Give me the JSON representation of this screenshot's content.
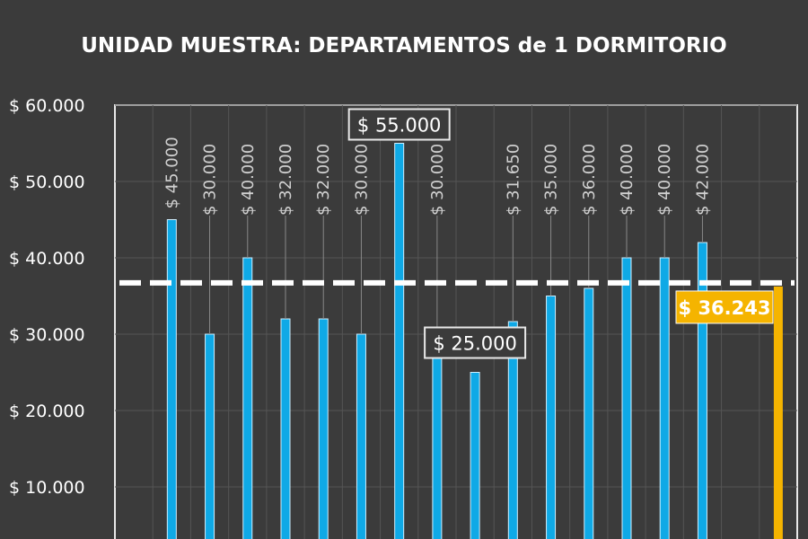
{
  "chart_data": {
    "type": "bar",
    "title": "UNIDAD MUESTRA: DEPARTAMENTOS  de 1 DORMITORIO",
    "xlabel": "",
    "ylabel": "",
    "ylim": [
      0,
      60000
    ],
    "yticks": [
      "$ 10.000",
      "$ 20.000",
      "$ 30.000",
      "$ 40.000",
      "$ 50.000",
      "$ 60.000"
    ],
    "ytick_values": [
      10000,
      20000,
      30000,
      40000,
      50000,
      60000
    ],
    "grid": true,
    "values": [
      45000,
      30000,
      40000,
      32000,
      32000,
      30000,
      55000,
      30000,
      25000,
      31650,
      35000,
      36000,
      40000,
      40000,
      42000
    ],
    "labels": [
      "$ 45.000",
      "$ 30.000",
      "$ 40.000",
      "$ 32.000",
      "$ 32.000",
      "$ 30.000",
      "$ 55.000",
      "$ 30.000",
      "$ 25.000",
      "$ 31.650",
      "$ 35.000",
      "$ 36.000",
      "$ 40.000",
      "$ 40.000",
      "$ 42.000"
    ],
    "highlighted_labels": [
      "$ 55.000",
      "$ 25.000"
    ],
    "average": {
      "value": 36243,
      "label": "$ 36.243"
    },
    "colors": {
      "bar": "#0fa9e6",
      "average": "#f5b400",
      "background": "#3b3b3b",
      "reference_line": "#ffffff"
    }
  }
}
